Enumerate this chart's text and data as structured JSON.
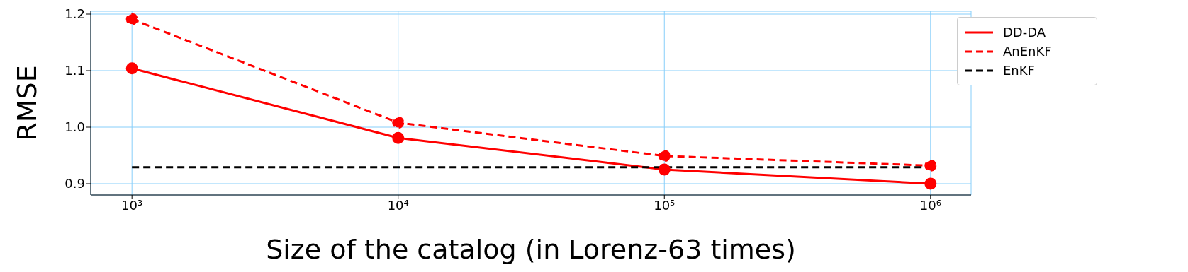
{
  "chart_data": {
    "type": "line",
    "xlabel": "Size of the catalog (in Lorenz-63 times)",
    "ylabel": "RMSE",
    "series": [
      {
        "name": "DD-DA",
        "color": "#ff0000",
        "x": [
          1000,
          10000,
          100000,
          1000000
        ],
        "values": [
          1.104,
          0.981,
          0.925,
          0.9
        ],
        "line_style": "solid",
        "marker": "circle"
      },
      {
        "name": "AnEnKF",
        "color": "#ff0000",
        "x": [
          1000,
          10000,
          100000,
          1000000
        ],
        "values": [
          1.191,
          1.008,
          0.949,
          0.932
        ],
        "line_style": "dashed",
        "marker": "circle"
      },
      {
        "name": "EnKF",
        "color": "#000000",
        "x": [
          1000,
          1000000
        ],
        "values": [
          0.929,
          0.929
        ],
        "line_style": "dashed",
        "marker": "none"
      }
    ],
    "log": "x",
    "xlim": [
      700,
      1420000
    ],
    "xticks": [
      {
        "value": 1000,
        "label": "10³"
      },
      {
        "value": 10000,
        "label": "10⁴"
      },
      {
        "value": 100000,
        "label": "10⁵"
      },
      {
        "value": 1000000,
        "label": "10⁶"
      }
    ],
    "ylim": [
      0.88,
      1.205
    ],
    "yticks": [
      {
        "value": 0.9,
        "label": "0.9"
      },
      {
        "value": 1.0,
        "label": "1.0"
      },
      {
        "value": 1.1,
        "label": "1.1"
      },
      {
        "value": 1.2,
        "label": "1.2"
      }
    ],
    "grid": true,
    "legend": "top right"
  }
}
